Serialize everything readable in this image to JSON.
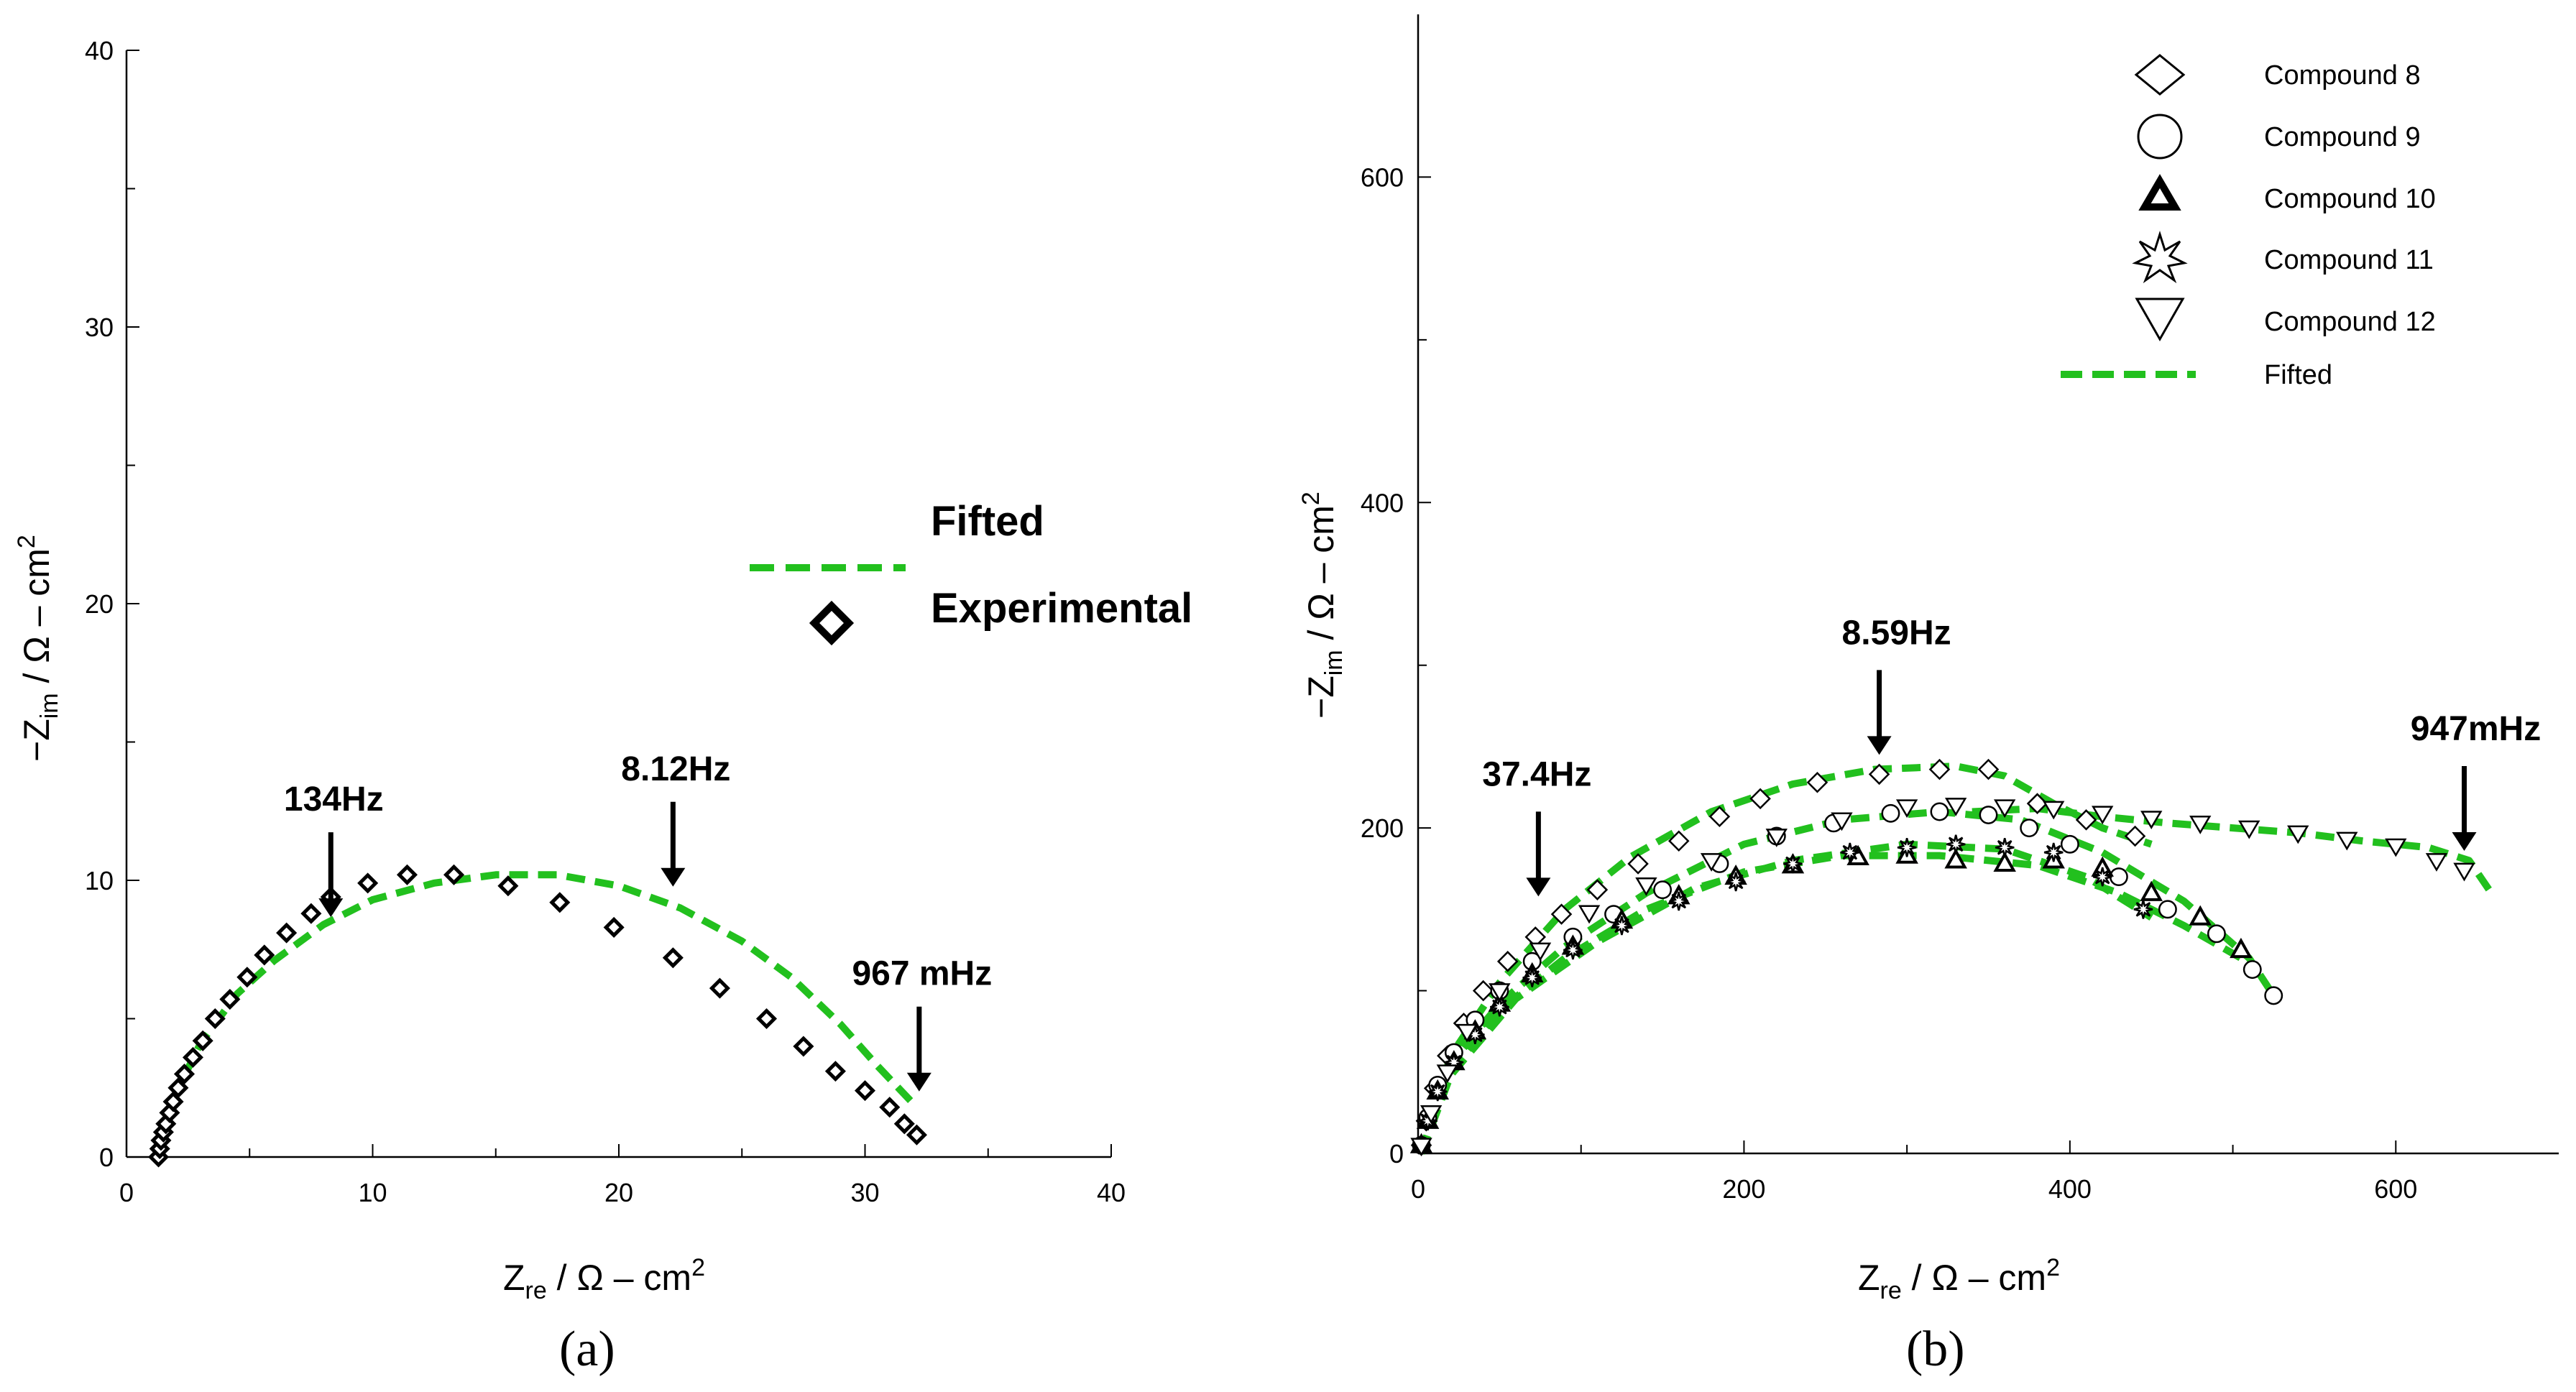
{
  "chart_data": [
    {
      "panel": "a",
      "panel_label": "(a)",
      "type": "scatter",
      "xlabel_main": "Z",
      "xlabel_sub": "re",
      "xlabel_rest": " / Ω – cm",
      "xlabel_sup": "2",
      "ylabel_main": "−Z",
      "ylabel_sub": "im",
      "ylabel_rest": " / Ω – cm",
      "ylabel_sup": "2",
      "xlim": [
        0,
        40
      ],
      "ylim": [
        0,
        40
      ],
      "xticks": [
        "0",
        "10",
        "20",
        "30",
        "40"
      ],
      "yticks": [
        "0",
        "10",
        "20",
        "30",
        "40"
      ],
      "legend": {
        "fitted": "Fifted",
        "experimental": "Experimental"
      },
      "annotations": [
        {
          "text": "134Hz",
          "x": 8.3,
          "y": 8.1
        },
        {
          "text": "8.12Hz",
          "x": 22.2,
          "y": 9.2
        },
        {
          "text": "967 mHz",
          "x": 32.2,
          "y": 1.8
        }
      ],
      "series": [
        {
          "name": "Experimental",
          "marker": "diamond",
          "x": [
            1.3,
            1.35,
            1.4,
            1.5,
            1.6,
            1.75,
            1.9,
            2.1,
            2.35,
            2.7,
            3.1,
            3.6,
            4.2,
            4.9,
            5.6,
            6.5,
            7.5,
            8.3,
            9.8,
            11.4,
            13.3,
            15.5,
            17.6,
            19.8,
            22.2,
            24.1,
            26.0,
            27.5,
            28.8,
            30.0,
            31.0,
            31.6,
            32.1
          ],
          "y": [
            0.0,
            0.3,
            0.6,
            0.9,
            1.2,
            1.6,
            2.0,
            2.5,
            3.0,
            3.6,
            4.2,
            5.0,
            5.7,
            6.5,
            7.3,
            8.1,
            8.8,
            9.4,
            9.9,
            10.2,
            10.2,
            9.8,
            9.2,
            8.3,
            7.2,
            6.1,
            5.0,
            4.0,
            3.1,
            2.4,
            1.8,
            1.2,
            0.8
          ],
          "color": "#000000"
        },
        {
          "name": "Fifted",
          "style": "dashed",
          "x": [
            1.3,
            1.5,
            2.0,
            3.0,
            4.5,
            6.0,
            8.0,
            10.0,
            12.5,
            15.0,
            17.5,
            20.0,
            22.5,
            25.0,
            27.0,
            29.0,
            30.5,
            32.1
          ],
          "y": [
            0.0,
            0.9,
            2.3,
            4.1,
            5.9,
            7.1,
            8.4,
            9.3,
            9.9,
            10.2,
            10.2,
            9.8,
            9.0,
            7.8,
            6.5,
            4.8,
            3.3,
            1.8
          ],
          "color": "#22c01e"
        }
      ]
    },
    {
      "panel": "b",
      "panel_label": "(b)",
      "type": "scatter",
      "xlabel_main": "Z",
      "xlabel_sub": "re",
      "xlabel_rest": " / Ω – cm",
      "xlabel_sup": "2",
      "ylabel_main": "−Z",
      "ylabel_sub": "im",
      "ylabel_rest": " / Ω – cm",
      "ylabel_sup": "2",
      "xlim": [
        0,
        700
      ],
      "ylim": [
        0,
        700
      ],
      "xticks": [
        "0",
        "200",
        "400",
        "600"
      ],
      "yticks": [
        "0",
        "200",
        "400",
        "600"
      ],
      "legend": [
        "Compound 8",
        "Compound 9",
        "Compound 10",
        "Compound 11",
        "Compound 12",
        "Fifted"
      ],
      "annotations": [
        {
          "text": "37.4Hz",
          "x": 80,
          "y": 150
        },
        {
          "text": "8.59Hz",
          "x": 283,
          "y": 237
        },
        {
          "text": "947mHz",
          "x": 642,
          "y": 178
        }
      ],
      "series": [
        {
          "name": "Compound 8",
          "marker": "diamond",
          "x": [
            2,
            5,
            10,
            18,
            28,
            40,
            55,
            72,
            88,
            110,
            135,
            160,
            185,
            210,
            245,
            283,
            320,
            350,
            380,
            410,
            440
          ],
          "y": [
            5,
            20,
            40,
            60,
            80,
            100,
            118,
            133,
            147,
            162,
            178,
            192,
            207,
            218,
            228,
            233,
            236,
            236,
            215,
            205,
            195
          ]
        },
        {
          "name": "Compound 9",
          "marker": "circle",
          "x": [
            2,
            6,
            12,
            22,
            35,
            50,
            70,
            95,
            120,
            150,
            185,
            220,
            255,
            290,
            320,
            350,
            375,
            400,
            430,
            460,
            490,
            512,
            525
          ],
          "y": [
            5,
            22,
            42,
            62,
            82,
            100,
            118,
            133,
            147,
            162,
            178,
            195,
            203,
            209,
            210,
            208,
            200,
            190,
            170,
            150,
            135,
            113,
            97
          ]
        },
        {
          "name": "Compound 10",
          "marker": "triangle-up",
          "x": [
            2,
            6,
            12,
            22,
            35,
            50,
            70,
            95,
            125,
            160,
            195,
            230,
            270,
            300,
            330,
            360,
            390,
            420,
            450,
            480,
            505
          ],
          "y": [
            5,
            20,
            38,
            56,
            75,
            92,
            110,
            127,
            143,
            158,
            170,
            177,
            182,
            183,
            180,
            178,
            180,
            175,
            160,
            145,
            125
          ]
        },
        {
          "name": "Compound 11",
          "marker": "star",
          "x": [
            2,
            6,
            12,
            22,
            35,
            50,
            70,
            95,
            125,
            160,
            195,
            230,
            265,
            300,
            330,
            360,
            390,
            420,
            445
          ],
          "y": [
            5,
            20,
            38,
            56,
            73,
            90,
            108,
            125,
            140,
            155,
            167,
            178,
            185,
            188,
            190,
            188,
            185,
            170,
            150
          ]
        },
        {
          "name": "Compound 12",
          "marker": "triangle-down",
          "x": [
            2,
            8,
            18,
            30,
            50,
            75,
            105,
            140,
            180,
            220,
            260,
            300,
            330,
            360,
            390,
            420,
            450,
            480,
            510,
            540,
            570,
            600,
            625,
            642
          ],
          "y": [
            5,
            25,
            50,
            75,
            100,
            125,
            148,
            165,
            180,
            195,
            205,
            213,
            214,
            213,
            212,
            209,
            206,
            203,
            200,
            197,
            193,
            189,
            180,
            174
          ]
        },
        {
          "name": "Fifted",
          "style": "dashed",
          "curves": [
            {
              "x": [
                2,
                20,
                50,
                90,
                130,
                180,
                230,
                280,
                330,
                360,
                390,
                420,
                450
              ],
              "y": [
                0,
                60,
                105,
                150,
                182,
                210,
                227,
                236,
                238,
                232,
                215,
                200,
                190
              ]
            },
            {
              "x": [
                2,
                20,
                50,
                90,
                140,
                200,
                260,
                320,
                370,
                420,
                470,
                510,
                525
              ],
              "y": [
                0,
                55,
                92,
                127,
                160,
                190,
                205,
                210,
                205,
                185,
                155,
                120,
                97
              ]
            },
            {
              "x": [
                2,
                20,
                50,
                90,
                140,
                200,
                260,
                320,
                380,
                430,
                470,
                505
              ],
              "y": [
                0,
                50,
                88,
                120,
                150,
                173,
                183,
                183,
                177,
                160,
                140,
                120
              ]
            },
            {
              "x": [
                2,
                20,
                60,
                110,
                170,
                230,
                300,
                360,
                410,
                450
              ],
              "y": [
                0,
                48,
                95,
                130,
                163,
                180,
                190,
                187,
                170,
                145
              ]
            },
            {
              "x": [
                340,
                380,
                420,
                460,
                500,
                540,
                580,
                620,
                645,
                660
              ],
              "y": [
                210,
                212,
                207,
                203,
                200,
                197,
                192,
                188,
                180,
                158
              ]
            }
          ],
          "color": "#22c01e"
        }
      ]
    }
  ]
}
